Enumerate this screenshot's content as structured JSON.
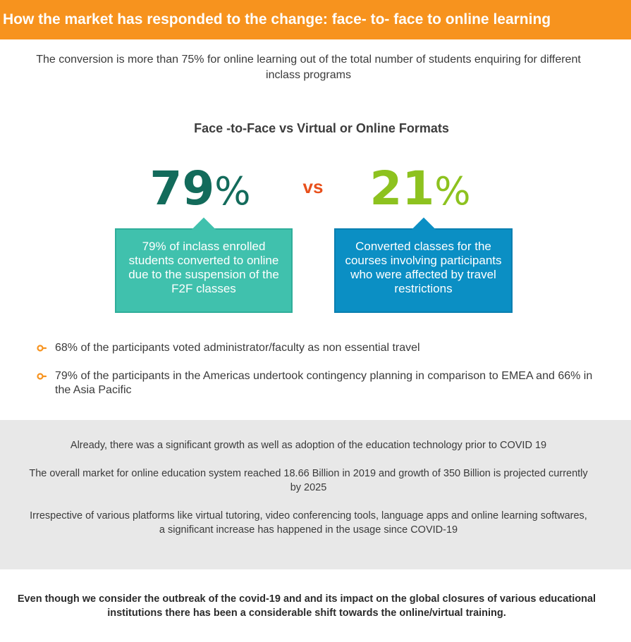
{
  "header": {
    "title": "How the market has responded to the change: face- to- face to online learning"
  },
  "intro": {
    "text": "The conversion is more than 75%  for online learning out of the total number of students enquiring for different inclass programs"
  },
  "comparison": {
    "title": "Face -to-Face vs Virtual or Online Formats",
    "vs_label": "vs",
    "left": {
      "number": "79",
      "percent_sign": "%",
      "description": "79% of inclass enrolled students converted to online due to the suspension of the F2F classes",
      "number_color": "#136b5b",
      "box_color": "#40c1ad"
    },
    "right": {
      "number": "21",
      "percent_sign": "%",
      "description": "Converted classes for the courses involving participants  who were affected by travel restrictions",
      "number_color": "#8dc21f",
      "box_color": "#0b8fc4"
    }
  },
  "bullets": [
    {
      "icon": "orange-bullet-icon",
      "text": "68% of the participants voted administrator/faculty as non essential travel"
    },
    {
      "icon": "orange-bullet-icon",
      "text": " 79% of the participants in the Americas undertook contingency planning in comparison to EMEA and 66% in the Asia Pacific"
    }
  ],
  "facts": [
    "Already, there was a significant growth as well as adoption of the education technology prior to COVID 19",
    "The overall market for online education system reached 18.66 Billion in 2019 and growth of 350 Billion is projected currently by 2025",
    "Irrespective of various platforms like virtual tutoring, video conferencing tools, language apps and online learning softwares, a significant increase has happened in the usage since COVID-19"
  ],
  "footer": {
    "text": "Even though we consider the outbreak of the covid-19 and and its impact on the global closures of various educational institutions there has been a considerable shift towards the online/virtual training."
  },
  "colors": {
    "accent": "#f7931e",
    "vs": "#e8501c",
    "panel": "#e8e8e8"
  }
}
